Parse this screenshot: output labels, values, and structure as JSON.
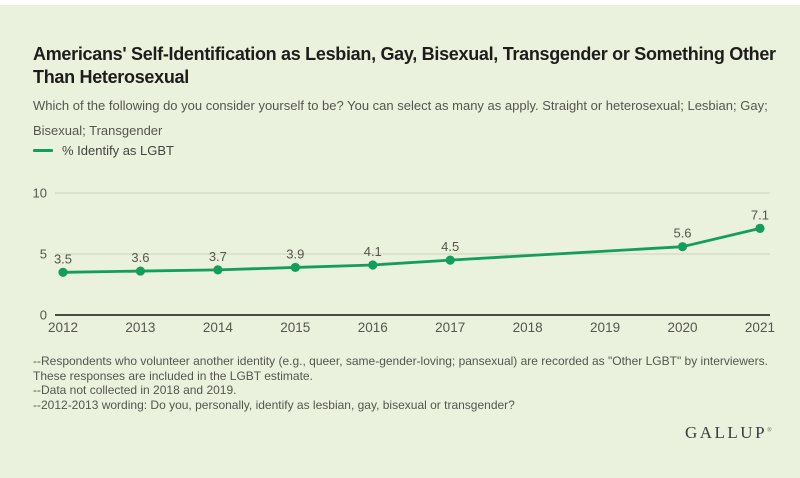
{
  "page": {
    "card_background": "#eaf1dc",
    "top_strip_color": "#ffffff"
  },
  "header": {
    "title": "Americans' Self-Identification as Lesbian, Gay, Bisexual, Transgender or Something Other Than Heterosexual",
    "subtitle": "Which of the following do you consider yourself to be? You can select as many as apply. Straight or heterosexual; Lesbian; Gay; Bisexual; Transgender"
  },
  "legend": {
    "label": "% Identify as LGBT",
    "color": "#149e5c"
  },
  "chart_data": {
    "type": "line",
    "categories": [
      "2012",
      "2013",
      "2014",
      "2015",
      "2016",
      "2017",
      "2018",
      "2019",
      "2020",
      "2021"
    ],
    "series": [
      {
        "name": "% Identify as LGBT",
        "color": "#149e5c",
        "values": [
          3.5,
          3.6,
          3.7,
          3.9,
          4.1,
          4.5,
          null,
          null,
          5.6,
          7.1
        ]
      }
    ],
    "missing_years": [
      "2018",
      "2019"
    ],
    "ylim": [
      0,
      10
    ],
    "yticks": [
      0,
      5,
      10
    ],
    "grid": "horizontal-light",
    "legend_position": "top-left",
    "axis_color": "#33342d",
    "gridline_color": "#d3d9c3",
    "label_color": "#55564d"
  },
  "footnotes": [
    "--Respondents who volunteer another identity (e.g., queer, same-gender-loving; pansexual) are recorded as \"Other LGBT\" by interviewers. These responses are included in the LGBT estimate.",
    "--Data not collected in 2018 and 2019.",
    "--2012-2013 wording: Do you, personally, identify as lesbian, gay, bisexual or transgender?"
  ],
  "branding": {
    "logo": "GALLUP",
    "registered_mark": "®"
  }
}
